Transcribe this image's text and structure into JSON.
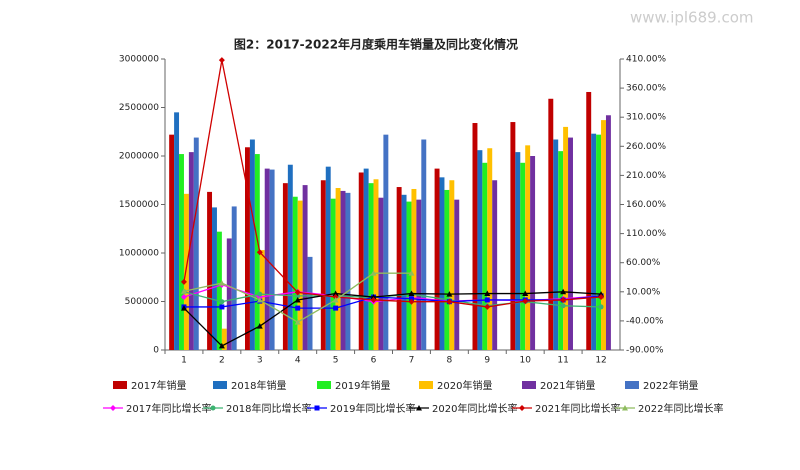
{
  "watermark": "www.ipl689.com",
  "chart_data": {
    "type": "bar",
    "title": "图2：2017-2022年月度乘用车销量及同比变化情况",
    "categories": [
      "1",
      "2",
      "3",
      "4",
      "5",
      "6",
      "7",
      "8",
      "9",
      "10",
      "11",
      "12"
    ],
    "ylim": [
      0,
      3000000
    ],
    "yticks": [
      0,
      500000,
      1000000,
      1500000,
      2000000,
      2500000,
      3000000
    ],
    "y2lim": [
      -90,
      410
    ],
    "y2ticks": [
      {
        "value": -90,
        "label": "-90.00%"
      },
      {
        "value": -40,
        "label": "-40.00%"
      },
      {
        "value": 10,
        "label": "10.00%"
      },
      {
        "value": 60,
        "label": "60.00%"
      },
      {
        "value": 110,
        "label": "110.00%"
      },
      {
        "value": 160,
        "label": "160.00%"
      },
      {
        "value": 210,
        "label": "210.00%"
      },
      {
        "value": 260,
        "label": "260.00%"
      },
      {
        "value": 310,
        "label": "310.00%"
      },
      {
        "value": 360,
        "label": "360.00%"
      },
      {
        "value": 410,
        "label": "410.00%"
      }
    ],
    "series": [
      {
        "name": "2017年销量",
        "type": "bar",
        "color": "#c00000",
        "values": [
          2220000,
          1630000,
          2090000,
          1720000,
          1750000,
          1830000,
          1680000,
          1870000,
          2340000,
          2350000,
          2590000,
          2660000
        ]
      },
      {
        "name": "2018年销量",
        "type": "bar",
        "color": "#1f6fc0",
        "values": [
          2450000,
          1470000,
          2170000,
          1910000,
          1890000,
          1870000,
          1600000,
          1780000,
          2060000,
          2040000,
          2170000,
          2230000
        ]
      },
      {
        "name": "2019年销量",
        "type": "bar",
        "color": "#22ee22",
        "values": [
          2020000,
          1220000,
          2020000,
          1580000,
          1560000,
          1720000,
          1530000,
          1650000,
          1930000,
          1930000,
          2050000,
          2220000
        ]
      },
      {
        "name": "2020年销量",
        "type": "bar",
        "color": "#ffc000",
        "values": [
          1610000,
          220000,
          1030000,
          1540000,
          1670000,
          1760000,
          1660000,
          1750000,
          2080000,
          2110000,
          2300000,
          2370000
        ]
      },
      {
        "name": "2021年销量",
        "type": "bar",
        "color": "#7030a0",
        "values": [
          2040000,
          1150000,
          1870000,
          1700000,
          1640000,
          1570000,
          1550000,
          1550000,
          1750000,
          2000000,
          2190000,
          2420000
        ]
      },
      {
        "name": "2022年销量",
        "type": "bar",
        "color": "#4472c4",
        "values": [
          2190000,
          1480000,
          1860000,
          960000,
          1620000,
          2220000,
          2170000,
          null,
          null,
          null,
          null,
          null
        ]
      },
      {
        "name": "2017年同比增长率",
        "type": "line",
        "axis": "y2",
        "marker": "diamond",
        "color": "#ff00ff",
        "values": [
          1,
          22,
          1,
          10,
          3,
          -7,
          0,
          -6,
          -4,
          -5,
          -2,
          3
        ]
      },
      {
        "name": "2018年同比增长率",
        "type": "line",
        "axis": "y2",
        "marker": "circle",
        "color": "#3cb371",
        "values": [
          10,
          -7,
          6,
          3,
          3,
          0,
          6,
          -4,
          -14,
          -7,
          -14,
          -16
        ]
      },
      {
        "name": "2019年同比增长率",
        "type": "line",
        "axis": "y2",
        "marker": "square",
        "color": "#0000ff",
        "values": [
          -16,
          -16,
          -6,
          -18,
          -18,
          1,
          -2,
          -7,
          -4,
          -4,
          -4,
          3
        ]
      },
      {
        "name": "2020年同比增长率",
        "type": "line",
        "axis": "y2",
        "marker": "triangle",
        "color": "#000000",
        "values": [
          -18,
          -83,
          -49,
          -4,
          7,
          1,
          7,
          6,
          7,
          7,
          10,
          6
        ]
      },
      {
        "name": "2021年同比增长率",
        "type": "line",
        "axis": "y2",
        "marker": "diamond",
        "color": "#d00000",
        "values": [
          27,
          408,
          78,
          9,
          1,
          -4,
          -7,
          -7,
          -16,
          -6,
          -4,
          1
        ]
      },
      {
        "name": "2022年同比增长率",
        "type": "line",
        "axis": "y2",
        "marker": "triangle",
        "color": "#8fbc5f",
        "values": [
          11,
          25,
          -4,
          -42,
          -4,
          42,
          42,
          null,
          null,
          null,
          null,
          null
        ]
      }
    ]
  }
}
